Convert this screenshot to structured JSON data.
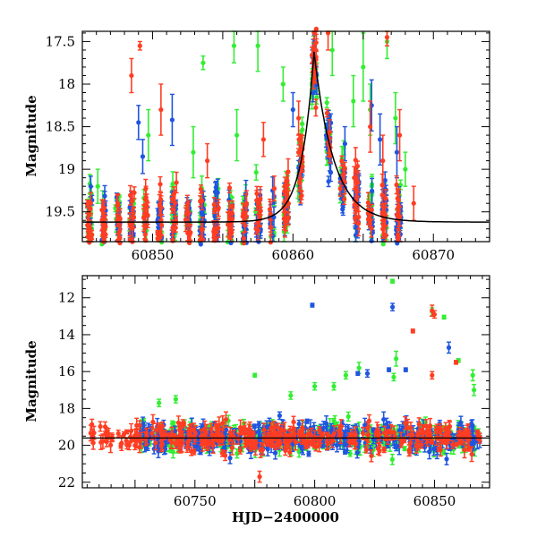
{
  "colors": {
    "green": "#33ee33",
    "blue": "#1f55e0",
    "red": "#ff3d22",
    "model": "#000000"
  },
  "chart_data": [
    {
      "type": "scatter",
      "xlabel": "",
      "ylabel": "Magnitude",
      "xlim": [
        60845,
        60874
      ],
      "ylim": [
        19.85,
        17.38
      ],
      "y_inverted": true,
      "x_ticks": [
        60850,
        60860,
        60870
      ],
      "y_ticks": [
        17.5,
        18,
        18.5,
        19,
        19.5
      ],
      "x_tick_labels": [
        "60850",
        "60860",
        "60870"
      ],
      "y_tick_labels": [
        "17.5",
        "18",
        "18.5",
        "19",
        "19.5"
      ],
      "model_curve": {
        "baseline": 19.62,
        "peak_mag": 17.62,
        "peak_x": 60861.5,
        "rise_tau": 0.9,
        "decay_tau": 1.4
      },
      "series": [
        {
          "color": "green",
          "data_range": [
            60845,
            60868
          ],
          "outliers": [
            [
              60853.6,
              17.75,
              0.08
            ],
            [
              60855.8,
              17.55,
              0.2
            ],
            [
              60857.5,
              17.55,
              0.3
            ],
            [
              60859.3,
              18.0,
              0.2
            ],
            [
              60862.8,
              17.6,
              0.3
            ],
            [
              60864.3,
              18.2,
              0.3
            ],
            [
              60865.0,
              17.8,
              0.4
            ],
            [
              60865.5,
              18.3,
              0.3
            ],
            [
              60866.7,
              17.5,
              0.2
            ],
            [
              60867.3,
              18.4,
              0.3
            ],
            [
              60868.0,
              19.0,
              0.2
            ],
            [
              60846.1,
              19.2,
              0.2
            ],
            [
              60849.7,
              18.6,
              0.3
            ],
            [
              60852.9,
              18.8,
              0.3
            ],
            [
              60856.0,
              18.6,
              0.3
            ]
          ]
        },
        {
          "color": "blue",
          "data_range": [
            60845,
            60868
          ],
          "outliers": [
            [
              60849.0,
              18.45,
              0.2
            ],
            [
              60849.3,
              18.85,
              0.2
            ],
            [
              60851.4,
              18.42,
              0.3
            ],
            [
              60860.0,
              18.3,
              0.2
            ],
            [
              60863.7,
              18.7,
              0.2
            ],
            [
              60865.6,
              18.25,
              0.3
            ],
            [
              60866.2,
              18.65,
              0.3
            ],
            [
              60867.4,
              18.8,
              0.3
            ]
          ]
        },
        {
          "color": "red",
          "data_range": [
            60845,
            60869
          ],
          "outliers": [
            [
              60849.1,
              17.55,
              0.05
            ],
            [
              60848.5,
              17.9,
              0.2
            ],
            [
              60850.6,
              18.3,
              0.3
            ],
            [
              60853.9,
              18.9,
              0.2
            ],
            [
              60857.9,
              18.65,
              0.2
            ],
            [
              60862.5,
              17.4,
              0.2
            ],
            [
              60865.5,
              18.5,
              0.3
            ],
            [
              60866.7,
              17.45,
              0.1
            ],
            [
              60866.4,
              18.9,
              0.3
            ],
            [
              60867.6,
              18.6,
              0.3
            ],
            [
              60868.6,
              19.4,
              0.2
            ],
            [
              60860.4,
              18.4,
              0.2
            ]
          ]
        }
      ]
    },
    {
      "type": "scatter",
      "xlabel": "HJD−2400000",
      "ylabel": "Magnitude",
      "xlim": [
        60703,
        60873
      ],
      "ylim": [
        22.3,
        10.8
      ],
      "y_inverted": true,
      "x_ticks": [
        60750,
        60800,
        60850
      ],
      "y_ticks": [
        12,
        14,
        16,
        18,
        20,
        22
      ],
      "x_tick_labels": [
        "60750",
        "60800",
        "60850"
      ],
      "y_tick_labels": [
        "12",
        "14",
        "16",
        "18",
        "20",
        "22"
      ],
      "baseline_mag": 19.6,
      "series": [
        {
          "color": "green",
          "data_range": [
            60727,
            60869
          ],
          "outliers": [
            [
              60832.5,
              11.1,
              0.1
            ],
            [
              60849.0,
              12.75,
              0.2
            ],
            [
              60854.0,
              13.05,
              0.1
            ],
            [
              60834.0,
              15.3,
              0.4
            ],
            [
              60833.0,
              16.3,
              0.2
            ],
            [
              60818.5,
              15.8,
              0.3
            ],
            [
              60813.0,
              16.2,
              0.2
            ],
            [
              60808.0,
              16.8,
              0.2
            ],
            [
              60800.0,
              16.8,
              0.2
            ],
            [
              60860.0,
              15.4,
              0.1
            ],
            [
              60775.0,
              16.2,
              0.1
            ],
            [
              60790.0,
              17.3,
              0.2
            ],
            [
              60742.0,
              17.5,
              0.2
            ],
            [
              60735.0,
              17.7,
              0.2
            ],
            [
              60866.0,
              16.2,
              0.3
            ],
            [
              60866.5,
              17.0,
              0.3
            ]
          ]
        },
        {
          "color": "blue",
          "data_range": [
            60727,
            60869
          ],
          "outliers": [
            [
              60799.0,
              12.4,
              0.1
            ],
            [
              60832.5,
              12.5,
              0.2
            ],
            [
              60856.0,
              14.7,
              0.3
            ],
            [
              60831.0,
              15.9,
              0.1
            ],
            [
              60838.0,
              15.9,
              0.1
            ],
            [
              60818.0,
              16.1,
              0.1
            ],
            [
              60822.0,
              16.1,
              0.2
            ]
          ]
        },
        {
          "color": "red",
          "data_range": [
            60706,
            60869
          ],
          "outliers": [
            [
              60849.0,
              12.7,
              0.3
            ],
            [
              60850.0,
              12.9,
              0.2
            ],
            [
              60841.0,
              13.8,
              0.1
            ],
            [
              60859.0,
              15.5,
              0.1
            ],
            [
              60849.0,
              16.2,
              0.2
            ],
            [
              60777.0,
              21.7,
              0.3
            ],
            [
              60783.0,
              19.0,
              0.3
            ]
          ]
        }
      ]
    }
  ]
}
